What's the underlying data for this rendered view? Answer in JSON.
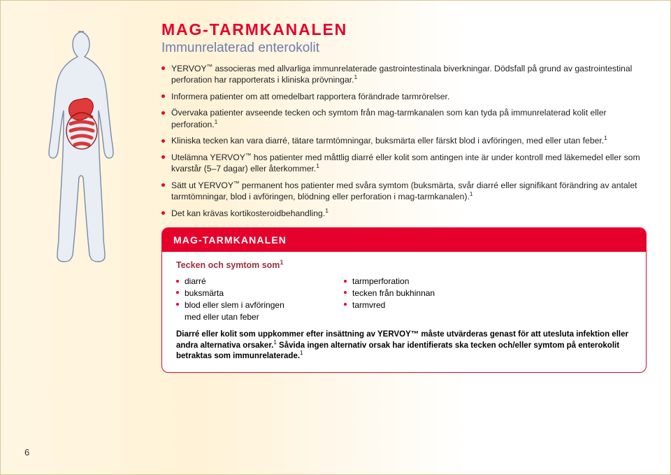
{
  "colors": {
    "accent": "#e6002c",
    "accent_dark": "#b8001f",
    "subtitle": "#6b7cb0",
    "box_sub": "#9d2d3c",
    "text": "#222222"
  },
  "title": "MAG-TARMKANALEN",
  "subtitle": "Immunrelaterad enterokolit",
  "bullets": [
    "YERVOY™ associeras med allvarliga immunrelaterade gastrointestinala biverkningar. Dödsfall på grund av gastrointestinal perforation har rapporterats i kliniska prövningar.¹",
    "Informera patienter om att omedelbart rapportera förändrade tarmrörelser.",
    "Övervaka patienter avseende tecken och symtom från mag-tarmkanalen som kan tyda på immunrelaterad kolit eller perforation.¹",
    "Kliniska tecken kan vara diarré, tätare tarmtömningar, buksmärta eller färskt blod i avföringen, med eller utan feber.¹",
    "Utelämna YERVOY™ hos patienter med måttlig diarré eller kolit som antingen inte är under kontroll med läkemedel eller som kvarstår (5–7 dagar) eller återkommer.¹",
    "Sätt ut YERVOY™ permanent hos patienter med svåra symtom (buksmärta, svår diarré eller signifikant förändring av antalet tarmtömningar, blod i avföringen, blödning eller perforation i mag-tarmkanalen).¹",
    "Det kan krävas kortikosteroidbehandling.¹"
  ],
  "box": {
    "header": "MAG-TARMKANALEN",
    "sub": "Tecken och symtom som¹",
    "left": [
      "diarré",
      "buksmärta",
      "blod eller slem i avföringen med eller utan feber"
    ],
    "right": [
      "tarmperforation",
      "tecken från bukhinnan",
      "tarmvred"
    ],
    "note_html": "Diarré eller kolit som uppkommer efter insättning av YERVOY™ måste utvärderas genast för att utesluta infektion eller andra alternativa orsaker.¹ Såvida ingen alternativ orsak har identifierats ska tecken och/eller symtom på enterokolit betraktas som immunrelaterade.¹"
  },
  "page_number": "6"
}
